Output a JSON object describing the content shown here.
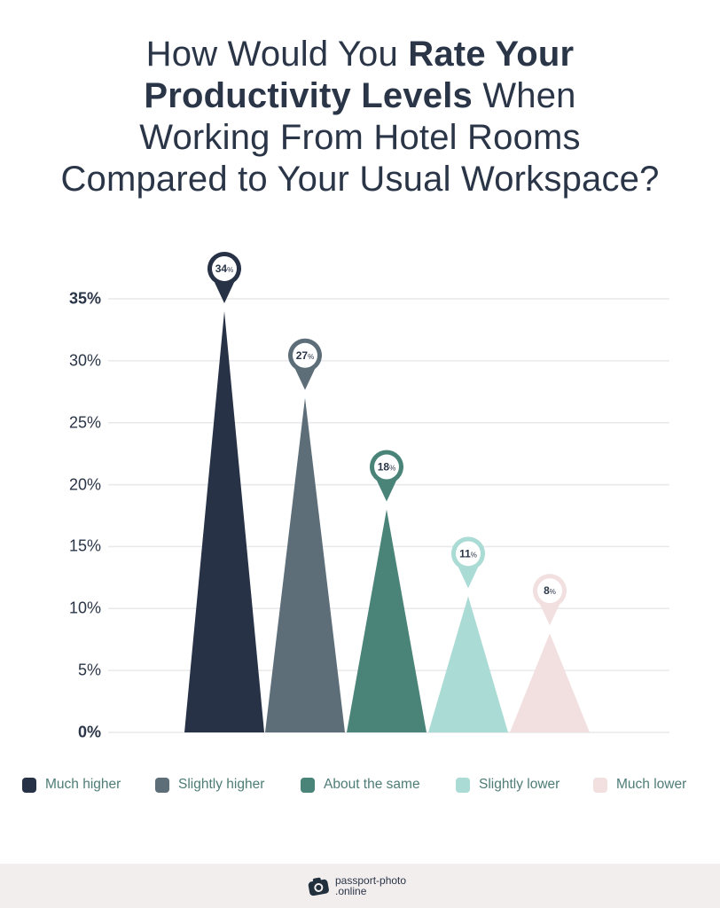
{
  "title": {
    "part1": "How Would You ",
    "bold1": "Rate Your",
    "bold2": "Productivity Levels",
    "part2": " When",
    "line3": "Working From Hotel Rooms",
    "line4": "Compared to Your Usual Workspace?"
  },
  "chart_data": {
    "type": "bar",
    "title": "How Would You Rate Your Productivity Levels When Working From Hotel Rooms Compared to Your Usual Workspace?",
    "categories": [
      "Much higher",
      "Slightly higher",
      "About the same",
      "Slightly lower",
      "Much lower"
    ],
    "values": [
      34,
      27,
      18,
      11,
      8
    ],
    "value_labels": [
      "34%",
      "27%",
      "18%",
      "11%",
      "8%"
    ],
    "colors": [
      "#273246",
      "#5d6e79",
      "#4a8378",
      "#aadbd5",
      "#f2dfdf"
    ],
    "xlabel": "",
    "ylabel": "",
    "ylim": [
      0,
      35
    ],
    "yticks": [
      "0%",
      "5%",
      "10%",
      "15%",
      "20%",
      "25%",
      "30%",
      "35%"
    ],
    "grid": true,
    "legend_position": "bottom",
    "bar_shape": "triangle with map-pin label"
  },
  "legend": {
    "items": [
      {
        "label": "Much higher",
        "color": "#273246"
      },
      {
        "label": "Slightly higher",
        "color": "#5d6e79"
      },
      {
        "label": "About the same",
        "color": "#4a8378"
      },
      {
        "label": "Slightly lower",
        "color": "#aadbd5"
      },
      {
        "label": "Much lower",
        "color": "#f2dfdf"
      }
    ]
  },
  "footer": {
    "brand_line1": "passport-photo",
    "brand_line2": ".online",
    "logo_icon": "camera-icon"
  }
}
